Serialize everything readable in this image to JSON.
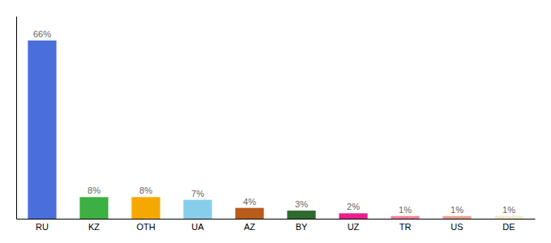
{
  "chart_data": {
    "type": "bar",
    "categories": [
      "RU",
      "KZ",
      "OTH",
      "UA",
      "AZ",
      "BY",
      "UZ",
      "TR",
      "US",
      "DE"
    ],
    "values": [
      66,
      8,
      8,
      7,
      4,
      3,
      2,
      1,
      1,
      1
    ],
    "value_labels": [
      "66%",
      "8%",
      "8%",
      "7%",
      "4%",
      "3%",
      "2%",
      "1%",
      "1%",
      "1%"
    ],
    "colors": [
      "#4a6fdc",
      "#3cb043",
      "#f5a800",
      "#87ceeb",
      "#b85c1a",
      "#2e6b2e",
      "#e91e8c",
      "#f48098",
      "#e8a090",
      "#f0ecc8"
    ],
    "ylim": [
      0,
      75
    ],
    "data_labels": true,
    "tick_labels": "x",
    "grid": false
  }
}
